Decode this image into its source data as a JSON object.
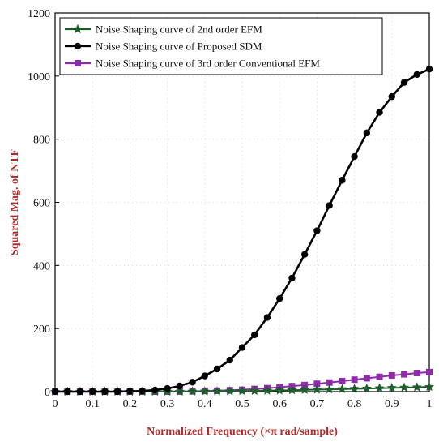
{
  "chart_data": {
    "type": "line",
    "title": "",
    "xlabel": "Normalized Frequency (×π rad/sample)",
    "ylabel": "Squared Mag. of NTF",
    "xlim": [
      0,
      1
    ],
    "ylim": [
      0,
      1200
    ],
    "x_ticks": [
      "0",
      "0.1",
      "0.2",
      "0.3",
      "0.4",
      "0.5",
      "0.6",
      "0.7",
      "0.8",
      "0.9",
      "1"
    ],
    "y_ticks": [
      "0",
      "200",
      "400",
      "600",
      "800",
      "1000",
      "1200"
    ],
    "grid": "dotted",
    "legend_position": "top-left",
    "label_color": "#b02a2a",
    "x": [
      0,
      0.033,
      0.067,
      0.1,
      0.133,
      0.167,
      0.2,
      0.233,
      0.267,
      0.3,
      0.333,
      0.367,
      0.4,
      0.433,
      0.467,
      0.5,
      0.533,
      0.567,
      0.6,
      0.633,
      0.667,
      0.7,
      0.733,
      0.767,
      0.8,
      0.833,
      0.867,
      0.9,
      0.933,
      0.967,
      1.0
    ],
    "series": [
      {
        "name": "Noise Shaping curve of 2nd order EFM",
        "color": "#1c5f2a",
        "marker": "star",
        "values": [
          0,
          0,
          0,
          0,
          0,
          0,
          0,
          0,
          0.1,
          0.2,
          0.3,
          0.5,
          0.8,
          1.1,
          1.5,
          2,
          2.5,
          3.1,
          3.8,
          4.6,
          5.4,
          6.3,
          7.2,
          8.1,
          9.1,
          10,
          11,
          12,
          13,
          14,
          15
        ]
      },
      {
        "name": "Noise Shaping curve of Proposed SDM",
        "color": "#000000",
        "marker": "circle",
        "values": [
          0,
          0,
          0,
          0,
          0,
          0,
          1,
          2,
          5,
          10,
          18,
          30,
          50,
          72,
          100,
          140,
          180,
          235,
          295,
          360,
          435,
          510,
          590,
          670,
          745,
          820,
          885,
          935,
          980,
          1005,
          1022
        ]
      },
      {
        "name": "Noise Shaping curve of 3rd order Conventional EFM",
        "color": "#8e2ba8",
        "marker": "square",
        "values": [
          0,
          0,
          0,
          0,
          0,
          0,
          0,
          0,
          0,
          0.2,
          0.5,
          1,
          2,
          3,
          4.5,
          6,
          8.5,
          11,
          14,
          17.5,
          21,
          25,
          29,
          33.5,
          38,
          42.5,
          47,
          51.5,
          55,
          59,
          62
        ]
      }
    ]
  }
}
